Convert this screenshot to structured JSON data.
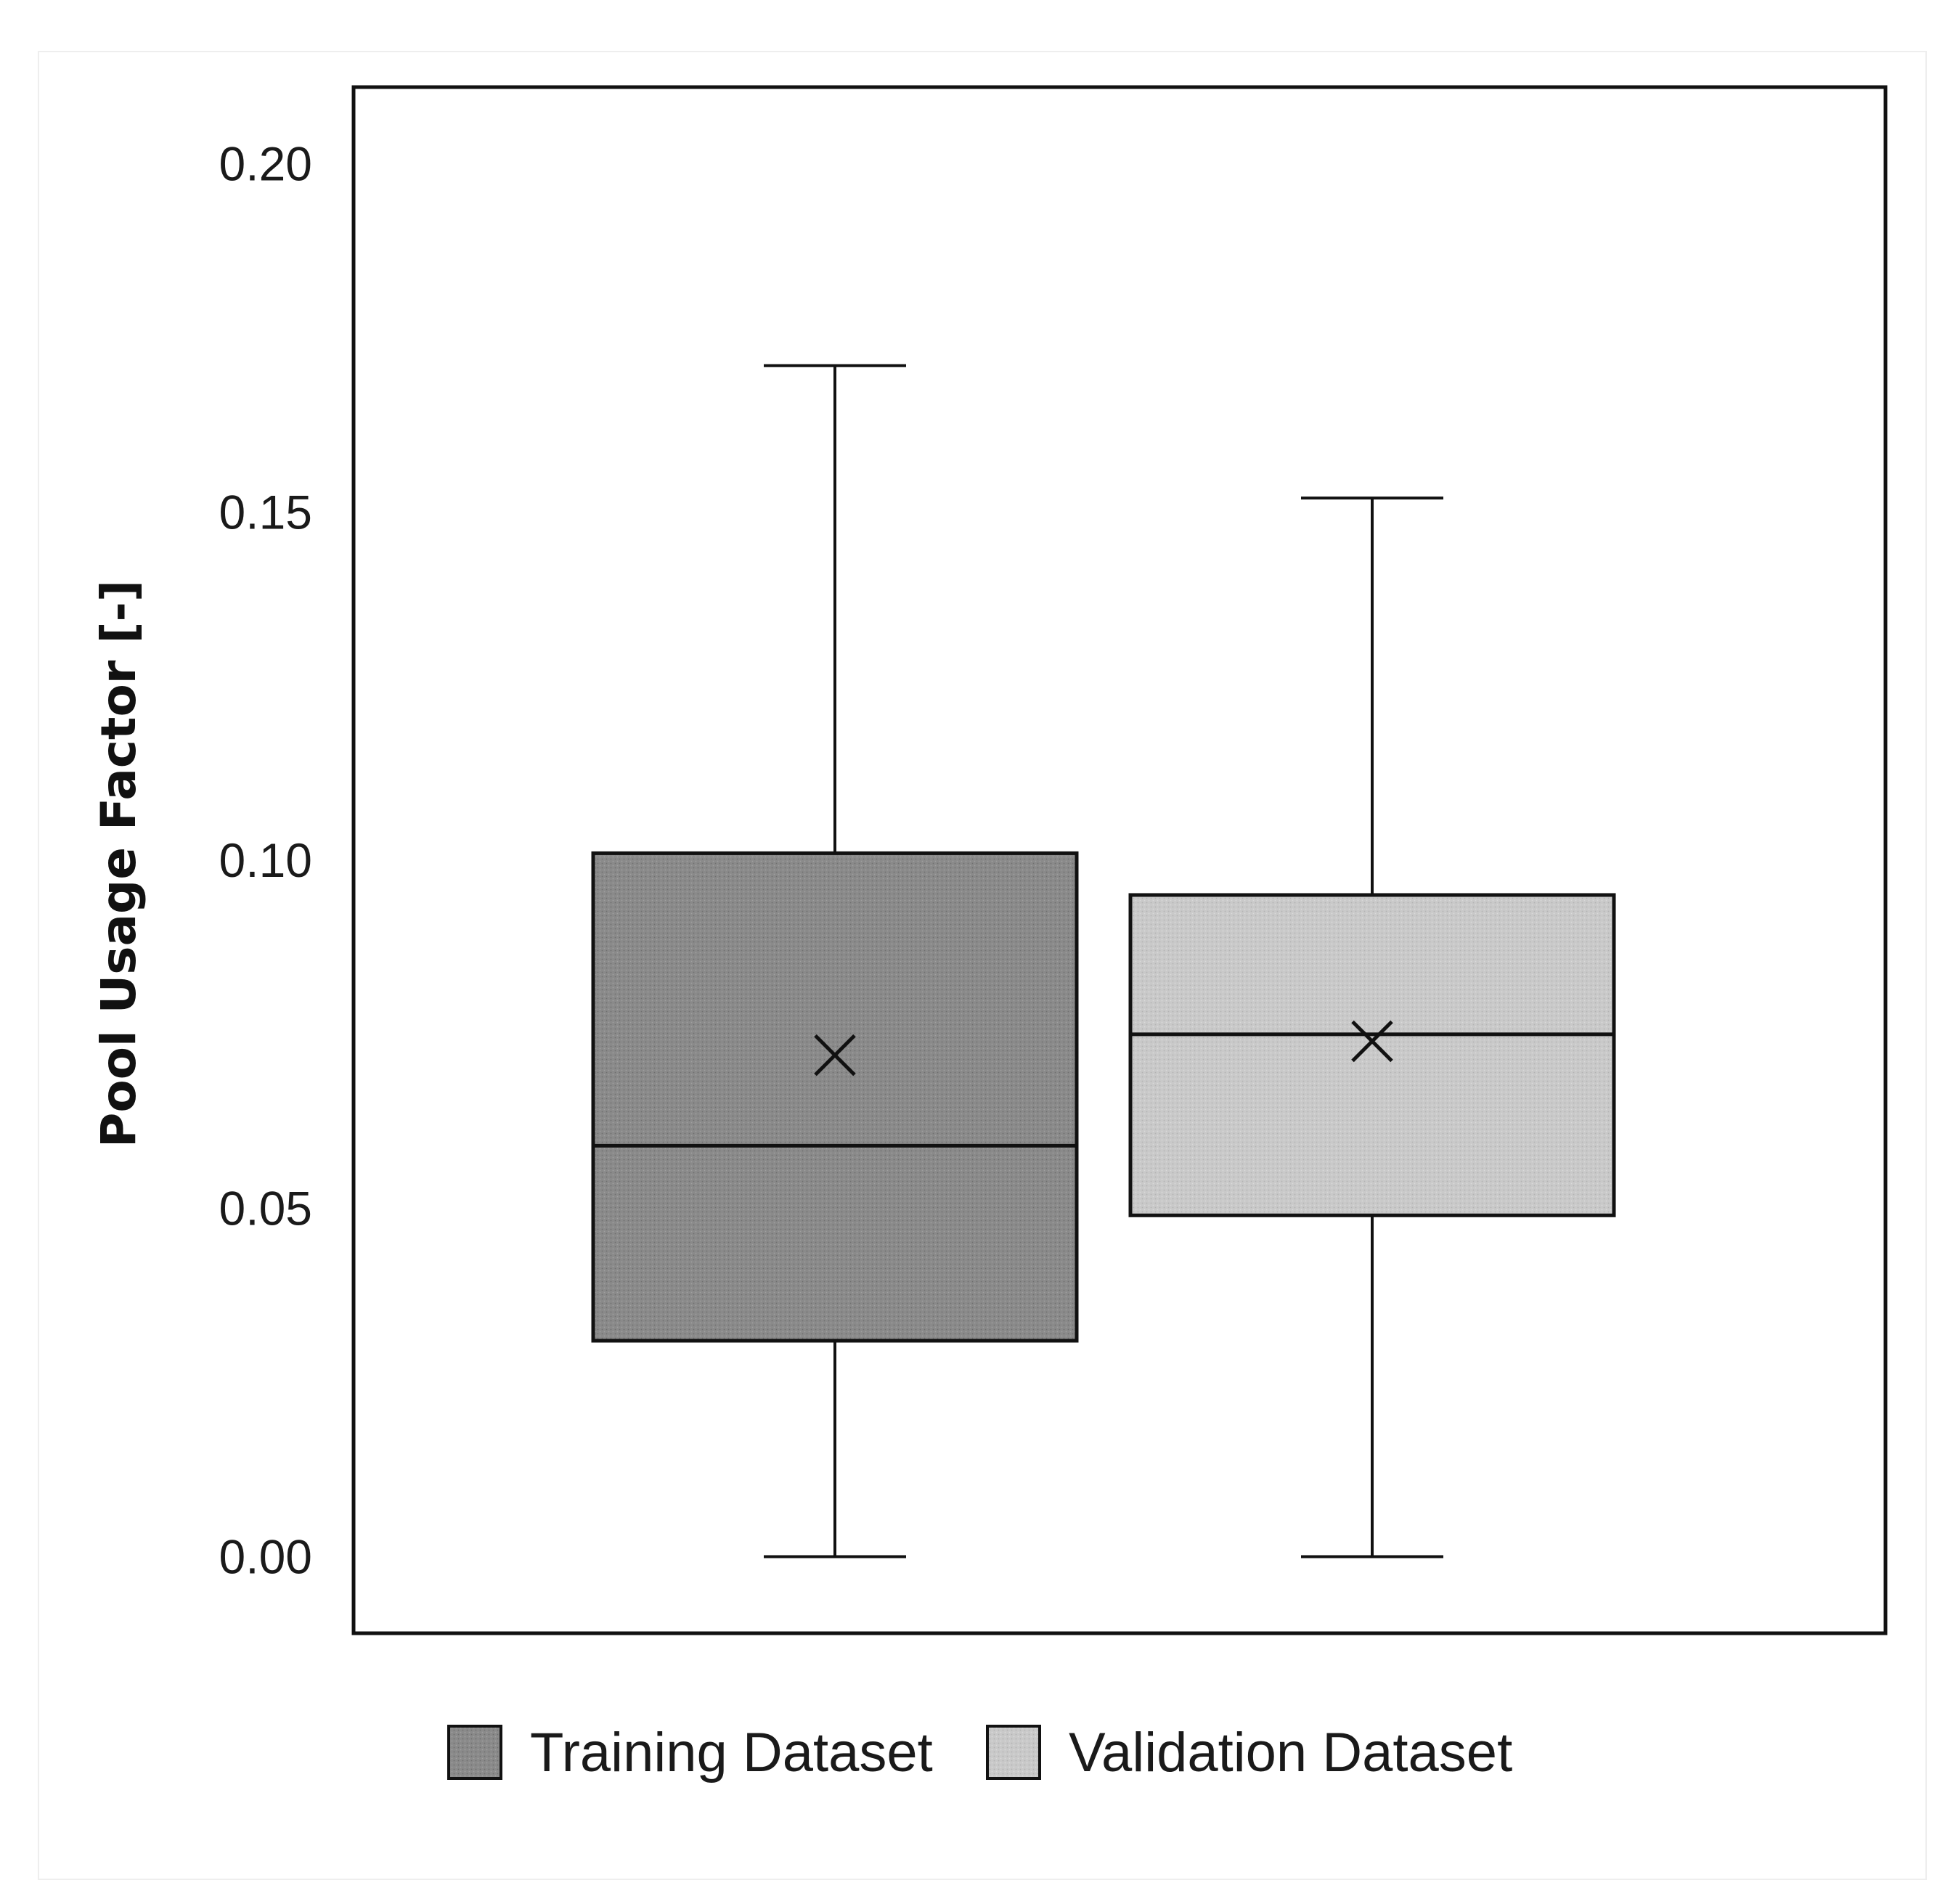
{
  "chart_data": {
    "type": "box",
    "title": "",
    "xlabel": "",
    "ylabel": "Pool Usage Factor [-]",
    "ylim": [
      -0.011,
      0.211
    ],
    "yticks": [
      0.0,
      0.05,
      0.1,
      0.15,
      0.2
    ],
    "ytick_labels": [
      "0.00",
      "0.05",
      "0.10",
      "0.15",
      "0.20"
    ],
    "grid": false,
    "legend_position": "bottom",
    "series": [
      {
        "name": "Training Dataset",
        "color": "#8c8c8c",
        "min": 0.0,
        "q1": 0.031,
        "median": 0.059,
        "q3": 0.101,
        "max": 0.171,
        "mean": 0.072
      },
      {
        "name": "Validation Dataset",
        "color": "#c8c8c8",
        "min": 0.0,
        "q1": 0.049,
        "median": 0.075,
        "q3": 0.095,
        "max": 0.152,
        "mean": 0.074
      }
    ]
  }
}
